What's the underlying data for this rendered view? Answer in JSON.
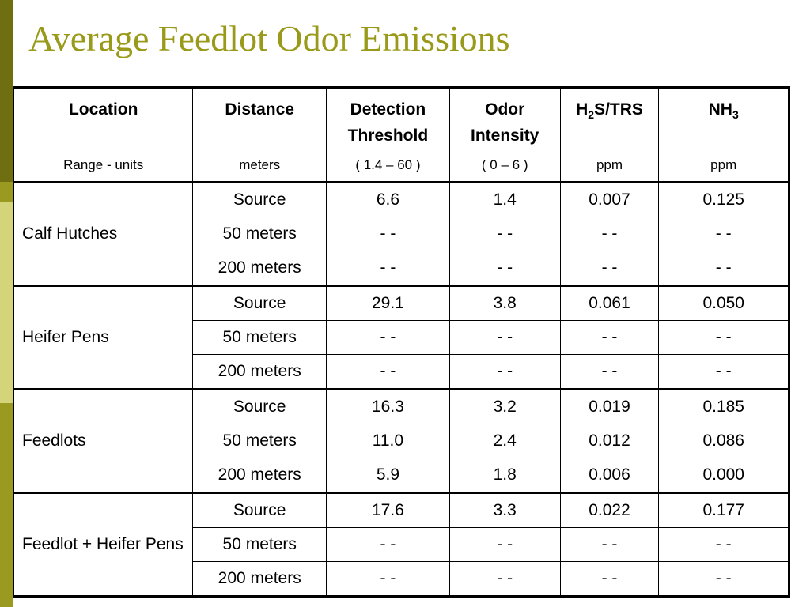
{
  "slide": {
    "title": "Average Feedlot Odor Emissions"
  },
  "table": {
    "headers": {
      "location": "Location",
      "distance": "Distance",
      "detection_l1": "Detection",
      "detection_l2": "Threshold",
      "odor_l1": "Odor",
      "odor_l2": "Intensity",
      "h2s_a": "H",
      "h2s_sub": "2",
      "h2s_b": "S/TRS",
      "nh3_a": "NH",
      "nh3_sub": "3"
    },
    "units": [
      "Range - units",
      "meters",
      "( 1.4 – 60 )",
      "( 0 – 6 )",
      "ppm",
      "ppm"
    ],
    "groups": [
      {
        "location": "Calf Hutches",
        "rows": [
          [
            "Source",
            "6.6",
            "1.4",
            "0.007",
            "0.125"
          ],
          [
            "50 meters",
            "- -",
            "- -",
            "- -",
            "- -"
          ],
          [
            "200 meters",
            "- -",
            "- -",
            "- -",
            "- -"
          ]
        ]
      },
      {
        "location": "Heifer Pens",
        "rows": [
          [
            "Source",
            "29.1",
            "3.8",
            "0.061",
            "0.050"
          ],
          [
            "50 meters",
            "- -",
            "- -",
            "- -",
            "- -"
          ],
          [
            "200 meters",
            "- -",
            "- -",
            "- -",
            "- -"
          ]
        ]
      },
      {
        "location": "Feedlots",
        "rows": [
          [
            "Source",
            "16.3",
            "3.2",
            "0.019",
            "0.185"
          ],
          [
            "50 meters",
            "11.0",
            "2.4",
            "0.012",
            "0.086"
          ],
          [
            "200 meters",
            "5.9",
            "1.8",
            "0.006",
            "0.000"
          ]
        ]
      },
      {
        "location": "Feedlot + Heifer Pens",
        "rows": [
          [
            "Source",
            "17.6",
            "3.3",
            "0.022",
            "0.177"
          ],
          [
            "50 meters",
            "- -",
            "- -",
            "- -",
            "- -"
          ],
          [
            "200 meters",
            "- -",
            "- -",
            "- -",
            "- -"
          ]
        ]
      }
    ]
  },
  "theme": {
    "title_color": "#9a9a1a",
    "bar_dark": "#6f6f12",
    "bar_mid": "#9a9a20",
    "bar_light": "#d4d47a"
  }
}
